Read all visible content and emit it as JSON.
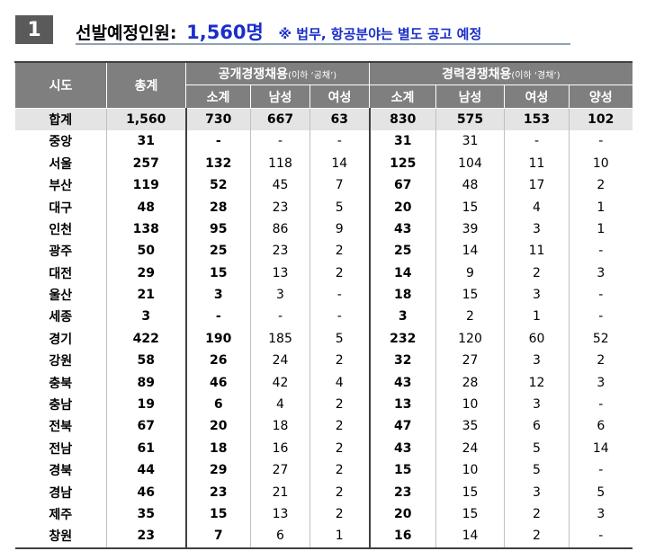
{
  "header": {
    "number": "1",
    "title": "선발예정인원:",
    "count": "1,560명",
    "note": "※ 법무, 항공분야는 별도 공고 예정"
  },
  "table": {
    "col_sido": "시도",
    "col_total": "총계",
    "group_open": "공개경쟁채용",
    "group_open_note": "(이하 ‘공채’)",
    "group_career": "경력경쟁채용",
    "group_career_note": "(이하 ‘경채’)",
    "sub_open": [
      "소계",
      "남성",
      "여성"
    ],
    "sub_career": [
      "소계",
      "남성",
      "여성",
      "양성"
    ],
    "rows": [
      [
        "합계",
        "1,560",
        "730",
        "667",
        "63",
        "830",
        "575",
        "153",
        "102"
      ],
      [
        "중앙",
        "31",
        "-",
        "-",
        "-",
        "31",
        "31",
        "-",
        "-"
      ],
      [
        "서울",
        "257",
        "132",
        "118",
        "14",
        "125",
        "104",
        "11",
        "10"
      ],
      [
        "부산",
        "119",
        "52",
        "45",
        "7",
        "67",
        "48",
        "17",
        "2"
      ],
      [
        "대구",
        "48",
        "28",
        "23",
        "5",
        "20",
        "15",
        "4",
        "1"
      ],
      [
        "인천",
        "138",
        "95",
        "86",
        "9",
        "43",
        "39",
        "3",
        "1"
      ],
      [
        "광주",
        "50",
        "25",
        "23",
        "2",
        "25",
        "14",
        "11",
        "-"
      ],
      [
        "대전",
        "29",
        "15",
        "13",
        "2",
        "14",
        "9",
        "2",
        "3"
      ],
      [
        "울산",
        "21",
        "3",
        "3",
        "-",
        "18",
        "15",
        "3",
        "-"
      ],
      [
        "세종",
        "3",
        "-",
        "-",
        "-",
        "3",
        "2",
        "1",
        "-"
      ],
      [
        "경기",
        "422",
        "190",
        "185",
        "5",
        "232",
        "120",
        "60",
        "52"
      ],
      [
        "강원",
        "58",
        "26",
        "24",
        "2",
        "32",
        "27",
        "3",
        "2"
      ],
      [
        "충북",
        "89",
        "46",
        "42",
        "4",
        "43",
        "28",
        "12",
        "3"
      ],
      [
        "충남",
        "19",
        "6",
        "4",
        "2",
        "13",
        "10",
        "3",
        "-"
      ],
      [
        "전북",
        "67",
        "20",
        "18",
        "2",
        "47",
        "35",
        "6",
        "6"
      ],
      [
        "전남",
        "61",
        "18",
        "16",
        "2",
        "43",
        "24",
        "5",
        "14"
      ],
      [
        "경북",
        "44",
        "29",
        "27",
        "2",
        "15",
        "10",
        "5",
        "-"
      ],
      [
        "경남",
        "46",
        "23",
        "21",
        "2",
        "23",
        "15",
        "3",
        "5"
      ],
      [
        "제주",
        "35",
        "15",
        "13",
        "2",
        "20",
        "15",
        "2",
        "3"
      ],
      [
        "창원",
        "23",
        "7",
        "6",
        "1",
        "16",
        "14",
        "2",
        "-"
      ]
    ]
  }
}
